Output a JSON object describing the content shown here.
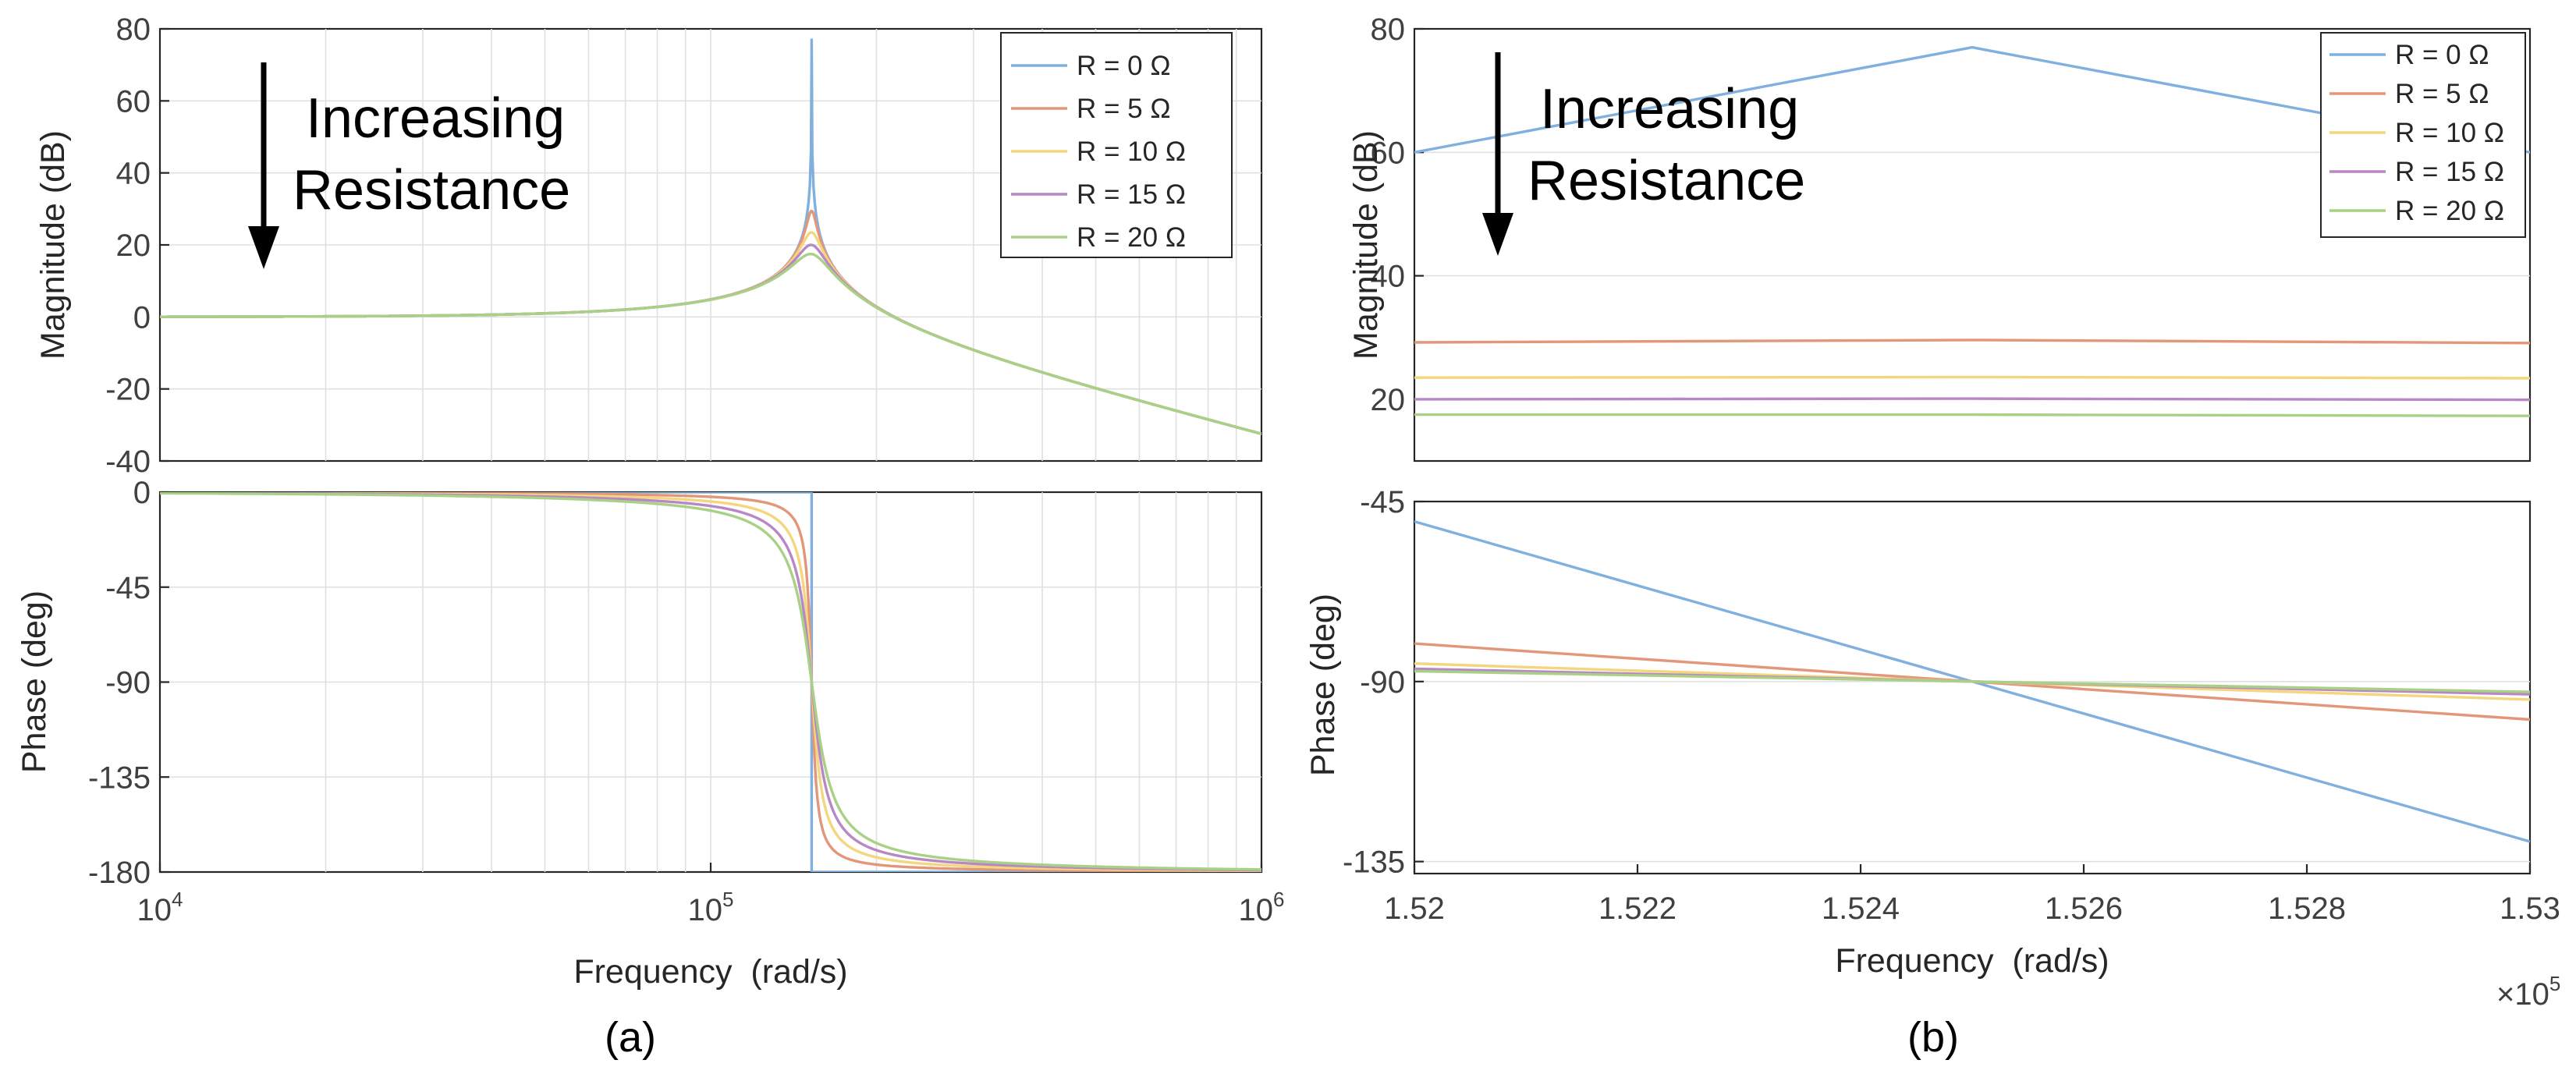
{
  "figure": {
    "caption_a": "(a)",
    "caption_b": "(b)",
    "annotation_line1": "Increasing",
    "annotation_line2": "Resistance"
  },
  "colors": {
    "R0": "#7fb0de",
    "R5": "#e3977a",
    "R10": "#f3d67d",
    "R15": "#b887c6",
    "R20": "#a9d186"
  },
  "chart_data": [
    {
      "id": "a-magnitude",
      "type": "line",
      "panel": "a",
      "xscale": "log",
      "xlim": [
        10000,
        1000000
      ],
      "ylim": [
        -40,
        80
      ],
      "ylabel": "Magnitude (dB)",
      "xlabel": "",
      "yticks": [
        "80",
        "60",
        "40",
        "20",
        "0",
        "-20",
        "-40"
      ],
      "ytick_values": [
        80,
        60,
        40,
        20,
        0,
        -20,
        -40
      ],
      "legend": [
        "R = 0 Ω",
        "R = 5 Ω",
        "R = 10 Ω",
        "R = 15 Ω",
        "R = 20 Ω"
      ],
      "legend_position": "top-right",
      "model": {
        "kind": "rlc-magnitude",
        "w0": 152500,
        "wc_R0": 152500
      },
      "series": [
        {
          "name": "R = 0 Ω",
          "color_key": "R0",
          "peak_db": 77,
          "zeta": 1e-05
        },
        {
          "name": "R = 5 Ω",
          "color_key": "R5",
          "peak_db": 29.5,
          "zeta": 0.0168
        },
        {
          "name": "R = 10 Ω",
          "color_key": "R10",
          "peak_db": 23.5,
          "zeta": 0.0335
        },
        {
          "name": "R = 15 Ω",
          "color_key": "R15",
          "peak_db": 20,
          "zeta": 0.05
        },
        {
          "name": "R = 20 Ω",
          "color_key": "R20",
          "peak_db": 17.5,
          "zeta": 0.067
        }
      ]
    },
    {
      "id": "a-phase",
      "type": "line",
      "panel": "a",
      "xscale": "log",
      "xlim": [
        10000,
        1000000
      ],
      "ylim": [
        -180,
        0
      ],
      "ylabel": "Phase (deg)",
      "xlabel": "Frequency  (rad/s)",
      "yticks": [
        "0",
        "-45",
        "-90",
        "-135",
        "-180"
      ],
      "ytick_values": [
        0,
        -45,
        -90,
        -135,
        -180
      ],
      "xticks": [
        {
          "base": "10",
          "exp": "4",
          "value": 10000
        },
        {
          "base": "10",
          "exp": "5",
          "value": 100000
        },
        {
          "base": "10",
          "exp": "6",
          "value": 1000000
        }
      ],
      "model": {
        "kind": "rlc-phase",
        "w0": 152500
      },
      "series": [
        {
          "name": "R = 0 Ω",
          "color_key": "R0",
          "zeta": 0
        },
        {
          "name": "R = 5 Ω",
          "color_key": "R5",
          "zeta": 0.0168
        },
        {
          "name": "R = 10 Ω",
          "color_key": "R10",
          "zeta": 0.0335
        },
        {
          "name": "R = 15 Ω",
          "color_key": "R15",
          "zeta": 0.05
        },
        {
          "name": "R = 20 Ω",
          "color_key": "R20",
          "zeta": 0.067
        }
      ]
    },
    {
      "id": "b-magnitude",
      "type": "line",
      "panel": "b",
      "xscale": "linear",
      "xlim": [
        152000,
        153000
      ],
      "ylim": [
        10,
        80
      ],
      "ylabel": "Magnitude (dB)",
      "xlabel": "",
      "yticks": [
        "80",
        "60",
        "40",
        "20"
      ],
      "ytick_values": [
        80,
        60,
        40,
        20
      ],
      "legend": [
        "R = 0 Ω",
        "R = 5 Ω",
        "R = 10 Ω",
        "R = 15 Ω",
        "R = 20 Ω"
      ],
      "legend_position": "top-right",
      "series": [
        {
          "name": "R = 0 Ω",
          "color_key": "R0",
          "x": [
            152000,
            152500,
            153000
          ],
          "y": [
            60,
            77,
            60
          ]
        },
        {
          "name": "R = 5 Ω",
          "color_key": "R5",
          "x": [
            152000,
            152500,
            153000
          ],
          "y": [
            29.2,
            29.6,
            29.1
          ]
        },
        {
          "name": "R = 10 Ω",
          "color_key": "R10",
          "x": [
            152000,
            152500,
            153000
          ],
          "y": [
            23.5,
            23.6,
            23.4
          ]
        },
        {
          "name": "R = 15 Ω",
          "color_key": "R15",
          "x": [
            152000,
            152500,
            153000
          ],
          "y": [
            20.0,
            20.1,
            19.9
          ]
        },
        {
          "name": "R = 20 Ω",
          "color_key": "R20",
          "x": [
            152000,
            152500,
            153000
          ],
          "y": [
            17.5,
            17.5,
            17.3
          ]
        }
      ]
    },
    {
      "id": "b-phase",
      "type": "line",
      "panel": "b",
      "xscale": "linear",
      "xlim": [
        152000,
        153000
      ],
      "ylim": [
        -138,
        -45
      ],
      "ylabel": "Phase (deg)",
      "xlabel": "Frequency  (rad/s)",
      "yticks": [
        "-45",
        "-90",
        "-135"
      ],
      "ytick_values": [
        -45,
        -90,
        -135
      ],
      "xticks": [
        "1.52",
        "1.522",
        "1.524",
        "1.526",
        "1.528",
        "1.53"
      ],
      "xtick_values": [
        152000,
        152200,
        152400,
        152600,
        152800,
        153000
      ],
      "xmultiplier_base": "×10",
      "xmultiplier_exp": "5",
      "series": [
        {
          "name": "R = 0 Ω",
          "color_key": "R0",
          "x": [
            152000,
            153000
          ],
          "y": [
            -50,
            -130
          ]
        },
        {
          "name": "R = 5 Ω",
          "color_key": "R5",
          "x": [
            152000,
            153000
          ],
          "y": [
            -80.5,
            -99.5
          ]
        },
        {
          "name": "R = 10 Ω",
          "color_key": "R10",
          "x": [
            152000,
            153000
          ],
          "y": [
            -85.5,
            -94.5
          ]
        },
        {
          "name": "R = 15 Ω",
          "color_key": "R15",
          "x": [
            152000,
            153000
          ],
          "y": [
            -86.8,
            -93.2
          ]
        },
        {
          "name": "R = 20 Ω",
          "color_key": "R20",
          "x": [
            152000,
            153000
          ],
          "y": [
            -87.4,
            -92.6
          ]
        }
      ]
    }
  ]
}
